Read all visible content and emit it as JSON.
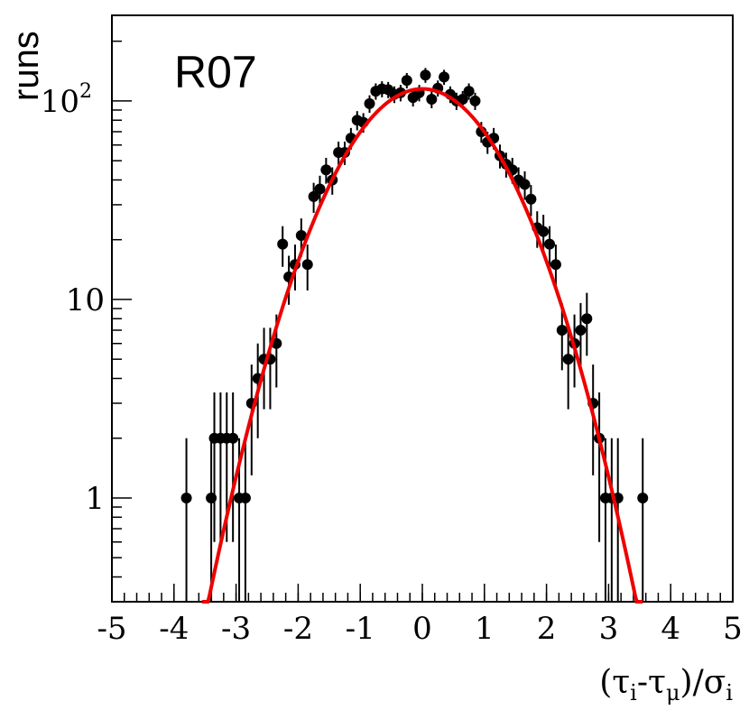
{
  "chart_data": {
    "type": "scatter",
    "title": "R07",
    "xlabel": "(τi-τμ)/σi",
    "xlabel_parts": {
      "open": "(",
      "tau1": "τ",
      "sub_i1": "i",
      "minus": "-",
      "tau2": "τ",
      "sub_mu": "μ",
      "close_slash": ")/",
      "sigma": "σ",
      "sub_i2": "i"
    },
    "ylabel": "runs",
    "yscale": "log",
    "xlim": [
      -5,
      5
    ],
    "ylim": [
      0.3,
      270
    ],
    "xticks": [
      "-5",
      "-4",
      "-3",
      "-2",
      "-1",
      "0",
      "1",
      "2",
      "3",
      "4",
      "5"
    ],
    "xtick_values": [
      -5,
      -4,
      -3,
      -2,
      -1,
      0,
      1,
      2,
      3,
      4,
      5
    ],
    "yticks": [
      {
        "value": 1,
        "label": "1"
      },
      {
        "value": 10,
        "label": "10"
      },
      {
        "value": 100,
        "label": "10",
        "sup": "2"
      }
    ],
    "colors": {
      "points": "#000000",
      "fit": "#ee0000"
    },
    "series": [
      {
        "name": "data",
        "x": [
          -3.8,
          -3.4,
          -3.35,
          -3.25,
          -3.15,
          -3.05,
          -2.95,
          -2.85,
          -2.75,
          -2.65,
          -2.55,
          -2.45,
          -2.35,
          -2.25,
          -2.15,
          -2.05,
          -1.95,
          -1.85,
          -1.75,
          -1.65,
          -1.55,
          -1.45,
          -1.35,
          -1.25,
          -1.15,
          -1.05,
          -0.95,
          -0.85,
          -0.75,
          -0.65,
          -0.55,
          -0.45,
          -0.35,
          -0.25,
          -0.15,
          -0.05,
          0.05,
          0.15,
          0.25,
          0.35,
          0.45,
          0.55,
          0.65,
          0.75,
          0.85,
          0.95,
          1.05,
          1.15,
          1.25,
          1.35,
          1.45,
          1.55,
          1.65,
          1.75,
          1.85,
          1.95,
          2.05,
          2.15,
          2.25,
          2.35,
          2.45,
          2.55,
          2.65,
          2.75,
          2.85,
          2.95,
          3.05,
          3.15,
          3.55
        ],
        "y": [
          1,
          1,
          2,
          2,
          2,
          2,
          1,
          1,
          3,
          4,
          5,
          5,
          6,
          19,
          13,
          15,
          21,
          15,
          33,
          36,
          45,
          40,
          55,
          55,
          65,
          80,
          78,
          97,
          112,
          115,
          114,
          108,
          110,
          127,
          104,
          110,
          135,
          102,
          116,
          132,
          108,
          100,
          102,
          112,
          100,
          70,
          62,
          65,
          53,
          48,
          45,
          40,
          38,
          32,
          23,
          22,
          19,
          15,
          7,
          5,
          6,
          7,
          8,
          3,
          2,
          1,
          1,
          1,
          1
        ],
        "err_lo": [
          1,
          1,
          1.4,
          1.4,
          1.4,
          1.4,
          1,
          1,
          1.7,
          2,
          2.2,
          2.2,
          2.4,
          4.4,
          3.6,
          3.9,
          4.6,
          3.9,
          5.7,
          6,
          6.7,
          6.3,
          7.4,
          7.4,
          8.1,
          8.9,
          8.8,
          9.8,
          10.6,
          10.7,
          10.7,
          10.4,
          10.5,
          11.3,
          10.2,
          10.5,
          11.6,
          10.1,
          10.8,
          11.5,
          10.4,
          10,
          10.1,
          10.6,
          10,
          8.4,
          7.9,
          8.1,
          7.3,
          6.9,
          6.7,
          6.3,
          6.2,
          5.7,
          4.8,
          4.7,
          4.4,
          3.9,
          2.6,
          2.2,
          2.4,
          2.6,
          2.8,
          1.7,
          1.4,
          1,
          1,
          1,
          1
        ],
        "err_hi": [
          1,
          1,
          1.4,
          1.4,
          1.4,
          1.4,
          1,
          1,
          1.7,
          2,
          2.2,
          2.2,
          2.4,
          4.4,
          3.6,
          3.9,
          4.6,
          3.9,
          5.7,
          6,
          6.7,
          6.3,
          7.4,
          7.4,
          8.1,
          8.9,
          8.8,
          9.8,
          10.6,
          10.7,
          10.7,
          10.4,
          10.5,
          11.3,
          10.2,
          10.5,
          11.6,
          10.1,
          10.8,
          11.5,
          10.4,
          10,
          10.1,
          10.6,
          10,
          8.4,
          7.9,
          8.1,
          7.3,
          6.9,
          6.7,
          6.3,
          6.2,
          5.7,
          4.8,
          4.7,
          4.4,
          3.9,
          2.6,
          2.2,
          2.4,
          2.6,
          2.8,
          1.7,
          1.4,
          1,
          1,
          1,
          1
        ]
      },
      {
        "name": "gaussian fit",
        "type": "line",
        "amplitude": 115,
        "mean": 0.0,
        "sigma": 1.0,
        "x_range": [
          -3.55,
          3.55
        ]
      }
    ]
  }
}
